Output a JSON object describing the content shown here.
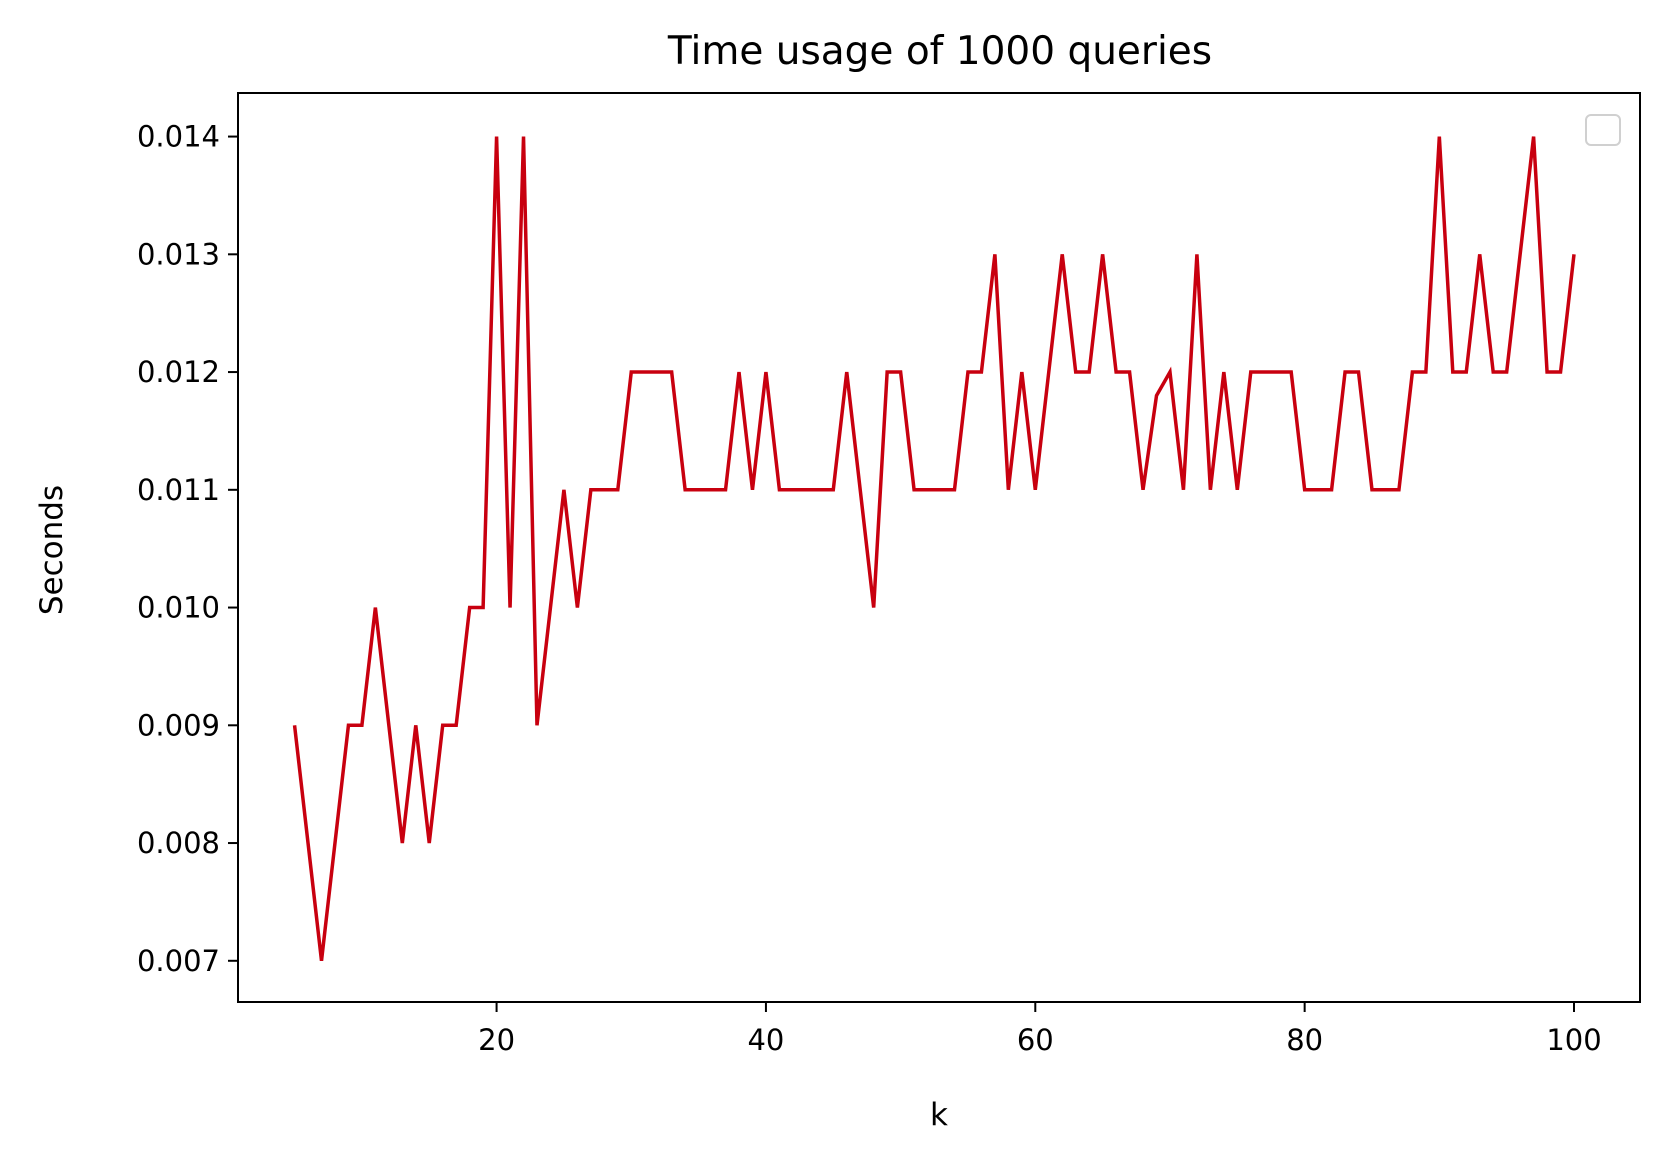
{
  "chart_data": {
    "type": "line",
    "title": "Time usage of 1000 queries",
    "xlabel": "k",
    "ylabel": "Seconds",
    "xlim": [
      0.8,
      104.9
    ],
    "ylim": [
      0.00665,
      0.01437
    ],
    "x_ticks": [
      20,
      40,
      60,
      80,
      100
    ],
    "x_tick_labels": [
      "20",
      "40",
      "60",
      "80",
      "100"
    ],
    "y_ticks": [
      0.007,
      0.008,
      0.009,
      0.01,
      0.011,
      0.012,
      0.013,
      0.014
    ],
    "y_tick_labels": [
      "0.007",
      "0.008",
      "0.009",
      "0.010",
      "0.011",
      "0.012",
      "0.013",
      "0.014"
    ],
    "grid": false,
    "legend": {
      "placement": "top-right",
      "entries": []
    },
    "colors": {
      "line": "#c8000f",
      "axes": "#000000",
      "legend_border": "#d0d0d0"
    },
    "series": [
      {
        "x": [
          5,
          6,
          7,
          8,
          9,
          10,
          11,
          12,
          13,
          14,
          15,
          16,
          17,
          18,
          19,
          20,
          21,
          22,
          23,
          24,
          25,
          26,
          27,
          28,
          29,
          30,
          31,
          32,
          33,
          34,
          35,
          36,
          37,
          38,
          39,
          40,
          41,
          42,
          43,
          44,
          45,
          46,
          47,
          48,
          49,
          50,
          51,
          52,
          53,
          54,
          55,
          56,
          57,
          58,
          59,
          60,
          61,
          62,
          63,
          64,
          65,
          66,
          67,
          68,
          69,
          70,
          71,
          72,
          73,
          74,
          75,
          76,
          77,
          78,
          79,
          80,
          81,
          82,
          83,
          84,
          85,
          86,
          87,
          88,
          89,
          90,
          91,
          92,
          93,
          94,
          95,
          96,
          97,
          98,
          99,
          100
        ],
        "values": [
          0.009,
          0.008,
          0.007,
          0.008,
          0.009,
          0.009,
          0.01,
          0.009,
          0.008,
          0.009,
          0.008,
          0.009,
          0.009,
          0.01,
          0.01,
          0.014,
          0.01,
          0.014,
          0.009,
          0.01,
          0.011,
          0.01,
          0.011,
          0.011,
          0.011,
          0.012,
          0.012,
          0.012,
          0.012,
          0.011,
          0.011,
          0.011,
          0.011,
          0.012,
          0.011,
          0.012,
          0.011,
          0.011,
          0.011,
          0.011,
          0.011,
          0.012,
          0.011,
          0.01,
          0.012,
          0.012,
          0.011,
          0.011,
          0.011,
          0.011,
          0.012,
          0.012,
          0.013,
          0.011,
          0.012,
          0.011,
          0.012,
          0.013,
          0.012,
          0.012,
          0.013,
          0.012,
          0.012,
          0.011,
          0.0118,
          0.012,
          0.011,
          0.013,
          0.011,
          0.012,
          0.011,
          0.012,
          0.012,
          0.012,
          0.012,
          0.011,
          0.011,
          0.011,
          0.012,
          0.012,
          0.011,
          0.011,
          0.011,
          0.012,
          0.012,
          0.014,
          0.012,
          0.012,
          0.013,
          0.012,
          0.012,
          0.013,
          0.014,
          0.012,
          0.012,
          0.013
        ]
      }
    ]
  }
}
